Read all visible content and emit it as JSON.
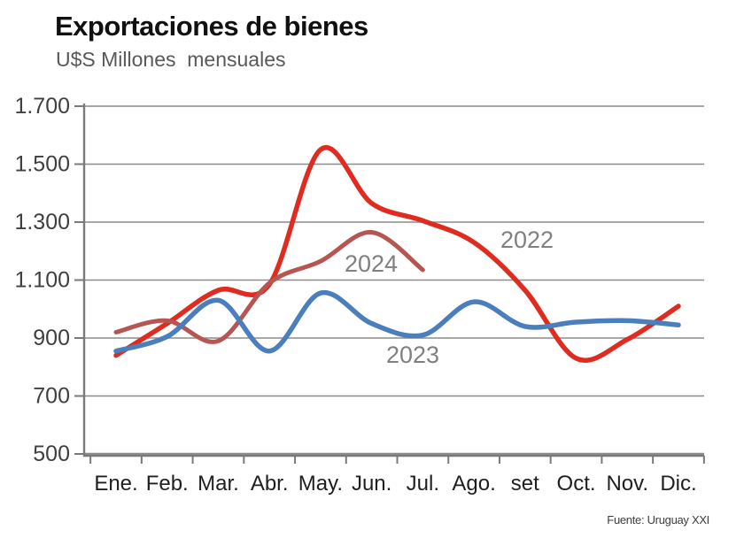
{
  "header": {
    "title": "Exportaciones de bienes",
    "subtitle": "U$S Millones  mensuales"
  },
  "source_note": "Fuente: Uruguay XXI",
  "colors": {
    "series_2022": "#df2b20",
    "series_2023": "#4a7ebc",
    "series_2024": "#b65551",
    "grid": "#8c8c8c",
    "axis": "#7a7a7a",
    "series_label_text": "#808080"
  },
  "chart_data": {
    "type": "line",
    "title": "Exportaciones de bienes",
    "subtitle": "U$S Millones mensuales",
    "categories": [
      "Ene.",
      "Feb.",
      "Mar.",
      "Abr.",
      "May.",
      "Jun.",
      "Jul.",
      "Ago.",
      "set",
      "Oct.",
      "Nov.",
      "Dic."
    ],
    "y_tick_labels": [
      "1.700",
      "1.500",
      "1.300",
      "1.100",
      "900",
      "700",
      "500"
    ],
    "y_tick_values": [
      1700,
      1500,
      1300,
      1100,
      900,
      700,
      500
    ],
    "ylim": [
      500,
      1700
    ],
    "grid": true,
    "legend_position": "inline-annotations",
    "series": [
      {
        "name": "2022",
        "color": "#df2b20",
        "values": [
          840,
          950,
          1065,
          1085,
          1550,
          1365,
          1305,
          1230,
          1065,
          830,
          895,
          1010
        ]
      },
      {
        "name": "2023",
        "color": "#4a7ebc",
        "values": [
          855,
          905,
          1030,
          855,
          1055,
          950,
          910,
          1025,
          940,
          955,
          960,
          945
        ]
      },
      {
        "name": "2024",
        "color": "#b65551",
        "values": [
          920,
          960,
          890,
          1090,
          1165,
          1265,
          1135
        ]
      }
    ]
  }
}
